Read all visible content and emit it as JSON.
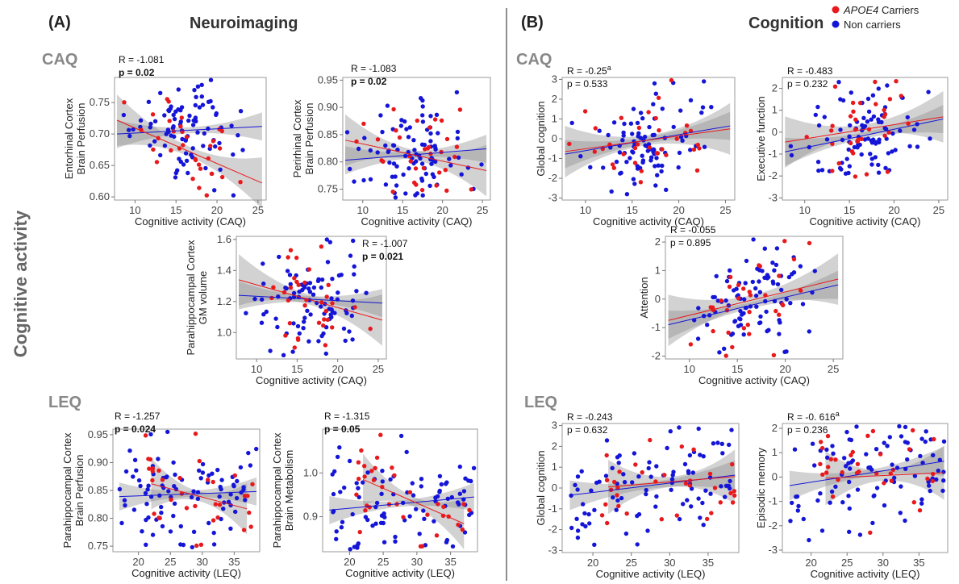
{
  "figure": {
    "panel_a": {
      "letter": "(A)",
      "title": "Neuroimaging"
    },
    "panel_b": {
      "letter": "(B)",
      "title": "Cognition"
    },
    "side_label": "Cognitive activity",
    "sections": {
      "a_caq": "CAQ",
      "a_leq": "LEQ",
      "b_caq": "CAQ",
      "b_leq": "LEQ"
    },
    "legend": [
      {
        "label": "APOE4 Carriers",
        "italic_part": "APOE4",
        "rest": " Carriers",
        "color": "#e8191c"
      },
      {
        "label": "Non carriers",
        "color": "#1515d8"
      }
    ],
    "colors": {
      "carrier": "#e8191c",
      "non_carrier": "#1515d8",
      "ci_band": "#bdbdbd"
    }
  },
  "chart_data": [
    {
      "type": "scatter",
      "id": "ent",
      "ylabel": [
        "Entorhinal Cortex",
        "Brain Perfusion"
      ],
      "xlabel": "Cognitive activity (CAQ)",
      "xlim": [
        7.5,
        26
      ],
      "ylim": [
        0.595,
        0.79
      ],
      "xticks": [
        10,
        15,
        20,
        25
      ],
      "yticks": [
        0.6,
        0.65,
        0.7,
        0.75
      ],
      "ytick_labels": [
        "0.60",
        "0.65",
        "0.70",
        "0.75"
      ],
      "stat": {
        "r": "R = -1.081",
        "p": "p = 0.02",
        "p_bold": true
      },
      "fit": {
        "carrier": [
          [
            7.8,
            0.722
          ],
          [
            25.5,
            0.622
          ]
        ],
        "non_carrier": [
          [
            7.8,
            0.7
          ],
          [
            25.5,
            0.712
          ]
        ]
      }
    },
    {
      "type": "scatter",
      "id": "peri",
      "ylabel": [
        "Perirhinal Cortex",
        "Brain Perfusion"
      ],
      "xlabel": "Cognitive activity (CAQ)",
      "xlim": [
        7.5,
        26
      ],
      "ylim": [
        0.73,
        0.955
      ],
      "xticks": [
        10,
        15,
        20,
        25
      ],
      "yticks": [
        0.75,
        0.8,
        0.85,
        0.9,
        0.95
      ],
      "ytick_labels": [
        "0.75",
        "0.80",
        "0.85",
        "0.90",
        "0.95"
      ],
      "stat": {
        "r": "R = -1.083",
        "p": "p = 0.02",
        "p_bold": true
      },
      "fit": {
        "carrier": [
          [
            7.8,
            0.84
          ],
          [
            25.5,
            0.784
          ]
        ],
        "non_carrier": [
          [
            7.8,
            0.803
          ],
          [
            25.5,
            0.824
          ]
        ]
      }
    },
    {
      "type": "scatter",
      "id": "parahip_gm",
      "ylabel": [
        "Parahippocampal Cortex",
        "GM volume"
      ],
      "xlabel": "Cognitive activity (CAQ)",
      "xlim": [
        7.5,
        26
      ],
      "ylim": [
        0.83,
        1.62
      ],
      "xticks": [
        10,
        15,
        20,
        25
      ],
      "yticks": [
        1.0,
        1.2,
        1.4,
        1.6
      ],
      "ytick_labels": [
        "1.0",
        "1.2",
        "1.4",
        "1.6"
      ],
      "stat": {
        "r": "R = -1.007",
        "p": "p = 0.021",
        "p_bold": true
      },
      "fit": {
        "carrier": [
          [
            7.8,
            1.34
          ],
          [
            25.5,
            1.08
          ]
        ],
        "non_carrier": [
          [
            7.8,
            1.24
          ],
          [
            25.5,
            1.19
          ]
        ]
      }
    },
    {
      "type": "scatter",
      "id": "parahip_perf",
      "ylabel": [
        "Parahippocampal Cortex",
        "Brain Perfusion"
      ],
      "xlabel": "Cognitive activity (LEQ)",
      "xlim": [
        16,
        39
      ],
      "ylim": [
        0.74,
        0.96
      ],
      "xticks": [
        20,
        25,
        30,
        35
      ],
      "yticks": [
        0.75,
        0.8,
        0.85,
        0.9,
        0.95
      ],
      "ytick_labels": [
        "0.75",
        "0.80",
        "0.85",
        "0.90",
        "0.95"
      ],
      "stat": {
        "r": "R = -1.257",
        "p": "p = 0.024",
        "p_bold": true
      },
      "fit": {
        "carrier": [
          [
            22,
            0.862
          ],
          [
            37,
            0.817
          ]
        ],
        "non_carrier": [
          [
            17,
            0.839
          ],
          [
            38.5,
            0.848
          ]
        ]
      }
    },
    {
      "type": "scatter",
      "id": "parahip_met",
      "ylabel": [
        "Parahippocampal Cortex",
        "Brain Metabolism"
      ],
      "xlabel": "Cognitive activity (LEQ)",
      "xlim": [
        16,
        39
      ],
      "ylim": [
        0.82,
        1.1
      ],
      "xticks": [
        20,
        25,
        30,
        35
      ],
      "yticks": [
        0.9,
        1.0
      ],
      "ytick_labels": [
        "0.9",
        "1.0"
      ],
      "stat": {
        "r": "R = -1.315",
        "p": "p = 0.05",
        "p_bold": true
      },
      "fit": {
        "carrier": [
          [
            22,
            0.985
          ],
          [
            37,
            0.884
          ]
        ],
        "non_carrier": [
          [
            17,
            0.915
          ],
          [
            38.5,
            0.945
          ]
        ]
      }
    },
    {
      "type": "scatter",
      "id": "glob_caq",
      "ylabel": [
        "Global cognition"
      ],
      "xlabel": "Cognitive activity (CAQ)",
      "xlim": [
        7.5,
        26
      ],
      "ylim": [
        -3.1,
        3.1
      ],
      "xticks": [
        10,
        15,
        20,
        25
      ],
      "yticks": [
        -3,
        -2,
        -1,
        0,
        1,
        2,
        3
      ],
      "ytick_labels": [
        "-3",
        "-2",
        "-1",
        "0",
        "1",
        "2",
        "3"
      ],
      "stat": {
        "r": "R = -0.25",
        "r_sup": "a",
        "p": "p = 0.533",
        "p_bold": false
      },
      "fit": {
        "carrier": [
          [
            7.8,
            -0.65
          ],
          [
            25.5,
            0.5
          ]
        ],
        "non_carrier": [
          [
            7.8,
            -0.78
          ],
          [
            25.5,
            0.65
          ]
        ]
      }
    },
    {
      "type": "scatter",
      "id": "exec",
      "ylabel": [
        "Executive function"
      ],
      "xlabel": "Cognitive activity (CAQ)",
      "xlim": [
        7.5,
        26
      ],
      "ylim": [
        -3.1,
        2.5
      ],
      "xticks": [
        10,
        15,
        20,
        25
      ],
      "yticks": [
        -3,
        -2,
        -1,
        0,
        1,
        2
      ],
      "ytick_labels": [
        "-3",
        "-2",
        "-1",
        "0",
        "1",
        "2"
      ],
      "stat": {
        "r": "R = -0.483",
        "p": "p = 0.232",
        "p_bold": false
      },
      "fit": {
        "carrier": [
          [
            7.8,
            -0.45
          ],
          [
            25.5,
            0.7
          ]
        ],
        "non_carrier": [
          [
            7.8,
            -0.9
          ],
          [
            25.5,
            0.6
          ]
        ]
      }
    },
    {
      "type": "scatter",
      "id": "attn",
      "ylabel": [
        "Attention"
      ],
      "xlabel": "Cognitive activity (CAQ)",
      "xlim": [
        7.5,
        26
      ],
      "ylim": [
        -2.1,
        2.2
      ],
      "xticks": [
        10,
        15,
        20,
        25
      ],
      "yticks": [
        -2,
        -1,
        0,
        1,
        2
      ],
      "ytick_labels": [
        "-2",
        "-1",
        "0",
        "1",
        "2"
      ],
      "stat": {
        "r": "R = -0.055",
        "p": "p = 0.895",
        "p_bold": false
      },
      "fit": {
        "carrier": [
          [
            7.8,
            -0.75
          ],
          [
            25.5,
            0.7
          ]
        ],
        "non_carrier": [
          [
            7.8,
            -0.9
          ],
          [
            25.5,
            0.5
          ]
        ]
      }
    },
    {
      "type": "scatter",
      "id": "glob_leq",
      "ylabel": [
        "Global cognition"
      ],
      "xlabel": "Cognitive activity (LEQ)",
      "xlim": [
        16,
        39
      ],
      "ylim": [
        -3.1,
        3.1
      ],
      "xticks": [
        20,
        25,
        30,
        35
      ],
      "yticks": [
        -3,
        -2,
        -1,
        0,
        1,
        2,
        3
      ],
      "ytick_labels": [
        "-3",
        "-2",
        "-1",
        "0",
        "1",
        "2",
        "3"
      ],
      "stat": {
        "r": "R = -0.243",
        "p": "p = 0.632",
        "p_bold": false
      },
      "fit": {
        "carrier": [
          [
            22,
            0.05
          ],
          [
            38.5,
            0.55
          ]
        ],
        "non_carrier": [
          [
            17,
            -0.35
          ],
          [
            38.5,
            0.62
          ]
        ]
      }
    },
    {
      "type": "scatter",
      "id": "episodic",
      "ylabel": [
        "Episodic memory"
      ],
      "xlabel": "Cognitive activity (LEQ)",
      "xlim": [
        16,
        39
      ],
      "ylim": [
        -3.1,
        2.2
      ],
      "xticks": [
        20,
        25,
        30,
        35
      ],
      "yticks": [
        -3,
        -2,
        -1,
        0,
        1,
        2
      ],
      "ytick_labels": [
        "-3",
        "-2",
        "-1",
        "0",
        "1",
        "2"
      ],
      "stat": {
        "r": "R = -0. 616",
        "r_sup": "a",
        "p": "p = 0.236",
        "p_bold": false
      },
      "fit": {
        "carrier": [
          [
            22,
            -0.05
          ],
          [
            38.5,
            0.18
          ]
        ],
        "non_carrier": [
          [
            17,
            -0.35
          ],
          [
            38.5,
            0.65
          ]
        ]
      }
    }
  ]
}
